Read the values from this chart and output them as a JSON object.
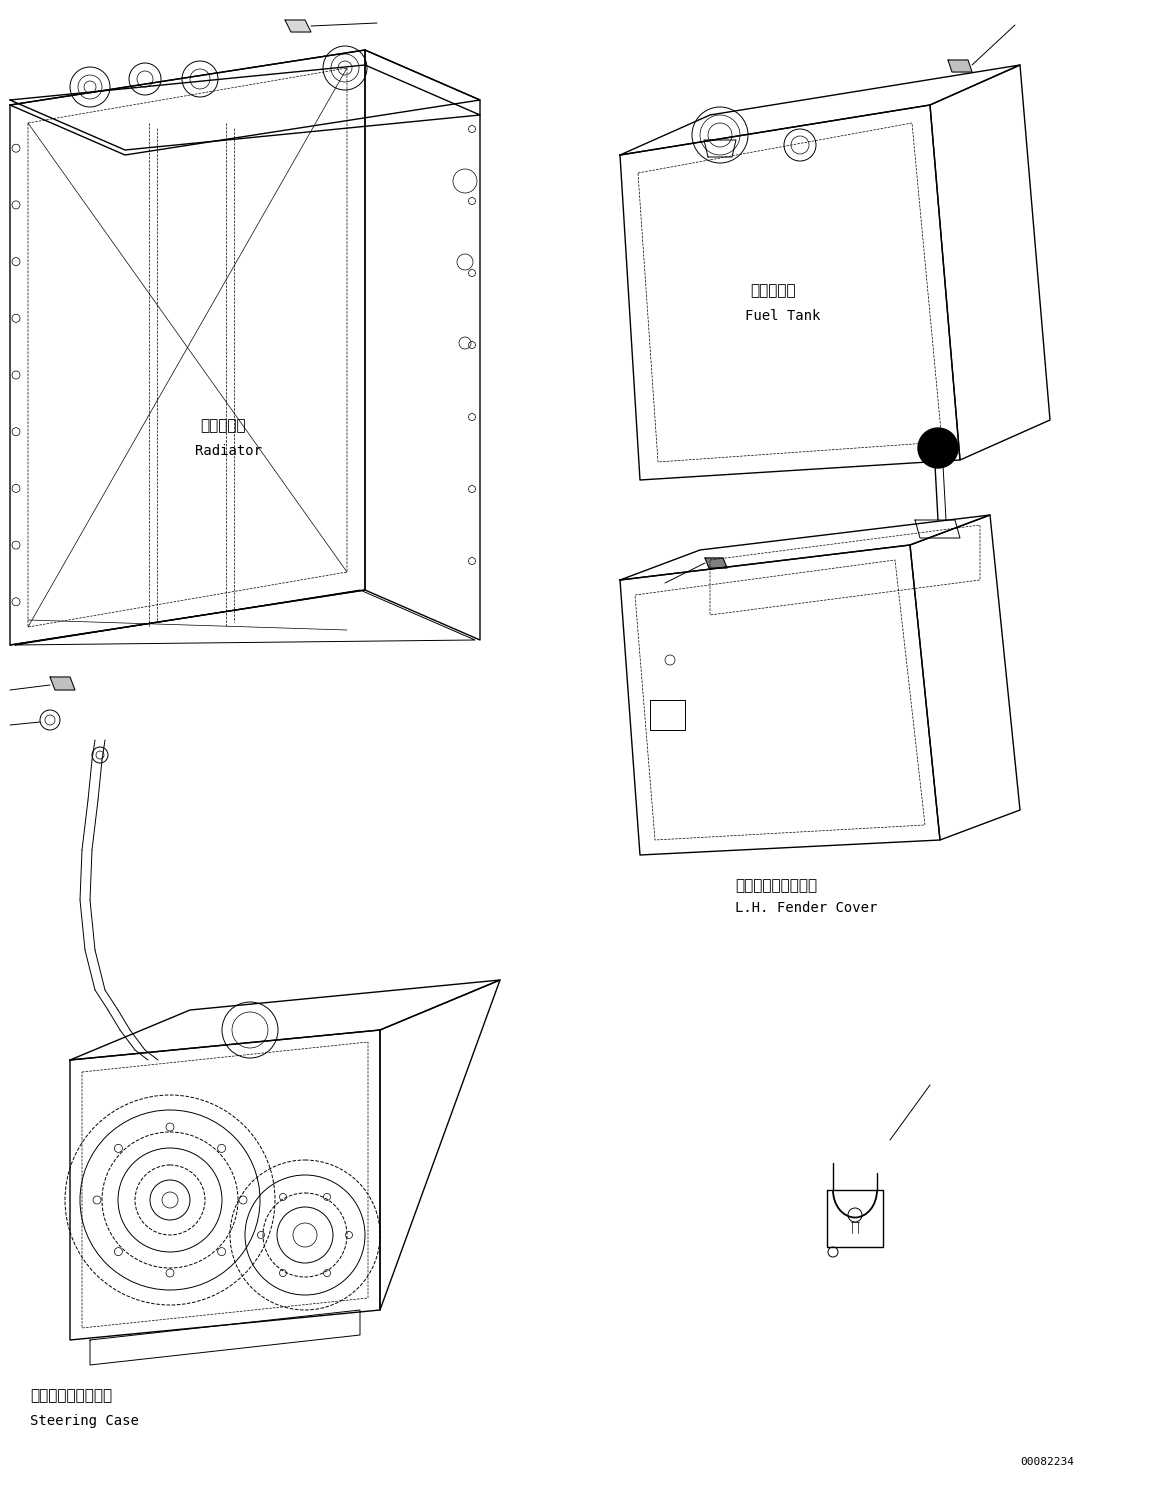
{
  "background_color": "#ffffff",
  "line_color": "#000000",
  "figure_number": "00082234",
  "labels": {
    "radiator_jp": "ラジエータ",
    "radiator_en": "Radiator",
    "fuel_tank_jp": "燃料タンク",
    "fuel_tank_en": "Fuel Tank",
    "steering_jp": "ステアリングケース",
    "steering_en": "Steering Case",
    "fender_jp": "左　フェンダカバー",
    "fender_en": "L.H. Fender Cover"
  },
  "font_size_jp": 11,
  "font_size_en": 10,
  "font_size_number": 8
}
